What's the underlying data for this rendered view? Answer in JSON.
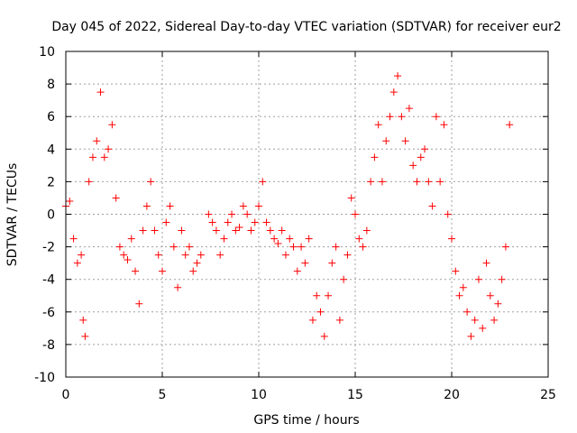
{
  "chart_data": {
    "type": "scatter",
    "title": "Day 045 of 2022, Sidereal Day-to-day VTEC variation (SDTVAR) for receiver eur2",
    "xlabel": "GPS time / hours",
    "ylabel": "SDTVAR / TECUs",
    "xlim": [
      0,
      25
    ],
    "ylim": [
      -10,
      10
    ],
    "xticks": [
      0,
      5,
      10,
      15,
      20,
      25
    ],
    "yticks": [
      -10,
      -8,
      -6,
      -4,
      -2,
      0,
      2,
      4,
      6,
      8,
      10
    ],
    "xtick_labels": [
      "0",
      "5",
      "10",
      "15",
      "20",
      "25"
    ],
    "ytick_labels": [
      "-10",
      "-8",
      "-6",
      "-4",
      "-2",
      "0",
      "2",
      "4",
      "6",
      "8",
      "10"
    ],
    "grid": true,
    "marker": "+",
    "color": "#ff0000",
    "series": [
      {
        "name": "SDTVAR",
        "x": [
          0.0,
          0.2,
          0.4,
          0.6,
          0.8,
          0.9,
          1.0,
          1.2,
          1.4,
          1.6,
          1.8,
          2.0,
          2.2,
          2.4,
          2.6,
          2.8,
          3.0,
          3.2,
          3.4,
          3.6,
          3.8,
          4.0,
          4.2,
          4.4,
          4.6,
          4.8,
          5.0,
          5.2,
          5.4,
          5.6,
          5.8,
          6.0,
          6.2,
          6.4,
          6.6,
          6.8,
          7.0,
          7.4,
          7.6,
          7.8,
          8.0,
          8.2,
          8.4,
          8.6,
          8.8,
          9.0,
          9.2,
          9.4,
          9.6,
          9.8,
          10.0,
          10.2,
          10.4,
          10.6,
          10.8,
          11.0,
          11.2,
          11.4,
          11.6,
          11.8,
          12.0,
          12.2,
          12.4,
          12.6,
          12.8,
          13.0,
          13.2,
          13.4,
          13.6,
          13.8,
          14.0,
          14.2,
          14.4,
          14.6,
          14.8,
          15.0,
          15.2,
          15.4,
          15.6,
          15.8,
          16.0,
          16.2,
          16.4,
          16.6,
          16.8,
          17.0,
          17.2,
          17.4,
          17.6,
          17.8,
          18.0,
          18.2,
          18.4,
          18.6,
          18.8,
          19.0,
          19.2,
          19.4,
          19.6,
          19.8,
          20.0,
          20.2,
          20.4,
          20.6,
          20.8,
          21.0,
          21.2,
          21.4,
          21.6,
          21.8,
          22.0,
          22.2,
          22.4,
          22.6,
          22.8,
          23.0
        ],
        "y": [
          0.5,
          0.8,
          -1.5,
          -3.0,
          -2.5,
          -6.5,
          -7.5,
          2.0,
          3.5,
          4.5,
          7.5,
          3.5,
          4.0,
          5.5,
          1.0,
          -2.0,
          -2.5,
          -2.8,
          -1.5,
          -3.5,
          -5.5,
          -1.0,
          0.5,
          2.0,
          -1.0,
          -2.5,
          -3.5,
          -0.5,
          0.5,
          -2.0,
          -4.5,
          -1.0,
          -2.5,
          -2.0,
          -3.5,
          -3.0,
          -2.5,
          0.0,
          -0.5,
          -1.0,
          -2.5,
          -1.5,
          -0.5,
          0.0,
          -1.0,
          -0.8,
          0.5,
          0.0,
          -1.0,
          -0.5,
          0.5,
          2.0,
          -0.5,
          -1.0,
          -1.5,
          -1.8,
          -1.0,
          -2.5,
          -1.5,
          -2.0,
          -3.5,
          -2.0,
          -3.0,
          -1.5,
          -6.5,
          -5.0,
          -6.0,
          -7.5,
          -5.0,
          -3.0,
          -2.0,
          -6.5,
          -4.0,
          -2.5,
          1.0,
          0.0,
          -1.5,
          -2.0,
          -1.0,
          2.0,
          3.5,
          5.5,
          2.0,
          4.5,
          6.0,
          7.5,
          8.5,
          6.0,
          4.5,
          6.5,
          3.0,
          2.0,
          3.5,
          4.0,
          2.0,
          0.5,
          6.0,
          2.0,
          5.5,
          0.0,
          -1.5,
          -3.5,
          -5.0,
          -4.5,
          -6.0,
          -7.5,
          -6.5,
          -4.0,
          -7.0,
          -3.0,
          -5.0,
          -6.5,
          -5.5,
          -4.0,
          -2.0,
          5.5
        ]
      }
    ]
  }
}
